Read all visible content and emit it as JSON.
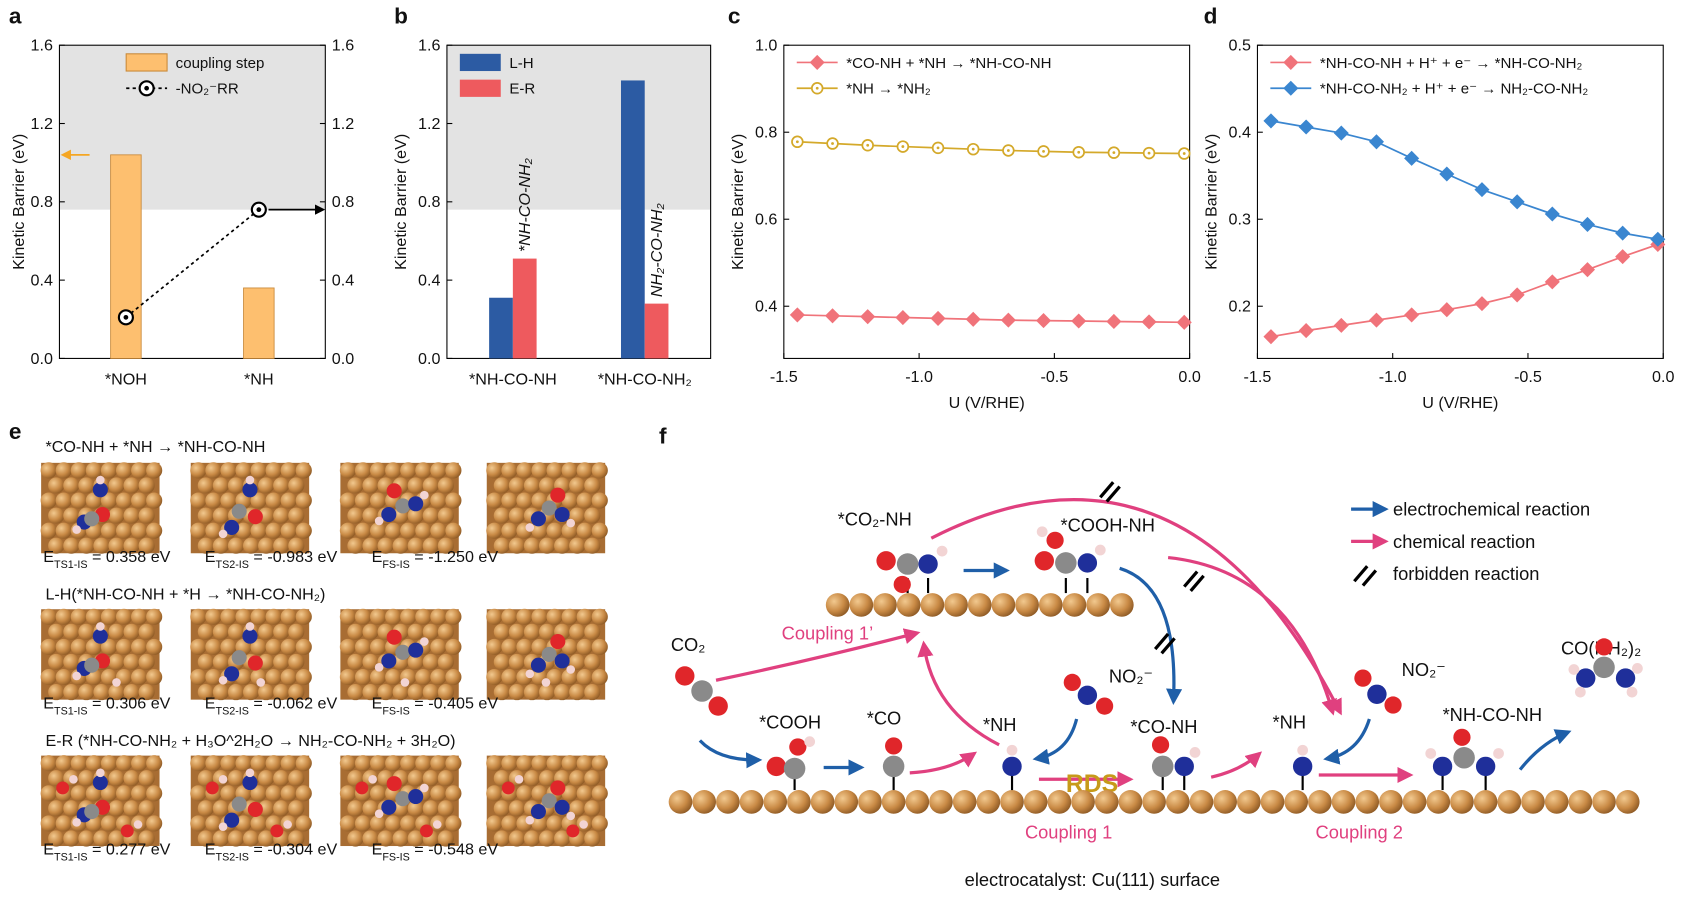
{
  "panel_labels": [
    "a",
    "b",
    "c",
    "d",
    "e",
    "f"
  ],
  "chart_data": [
    {
      "type": "bar",
      "categories": [
        "*NOH",
        "*NH"
      ],
      "series": [
        {
          "name": "coupling step",
          "color": "#fdbf6f",
          "values": [
            1.04,
            0.36
          ]
        },
        {
          "name": "-NO₂⁻RR",
          "color": "#000000",
          "type": "line",
          "marker": "bullseye",
          "axis": "y2",
          "values": [
            0.21,
            0.76
          ]
        }
      ],
      "ylabel": "Kinetic Barrier (eV)",
      "ylim": [
        0,
        1.6
      ],
      "yticks": [
        {
          "value": 0,
          "label": "0.0"
        },
        0.4,
        0.8,
        1.2,
        1.6
      ],
      "y2lim": [
        0,
        1.6
      ],
      "y2ticks": [
        {
          "value": 0,
          "label": "0.0"
        },
        0.4,
        0.8,
        1.2,
        1.6
      ],
      "shaded_above": 0.76,
      "legend": "upper right"
    },
    {
      "type": "bar",
      "categories": [
        "*NH-CO-NH",
        "*NH-CO-NH₂"
      ],
      "series": [
        {
          "name": "L-H",
          "color": "#2c5ba3",
          "values": [
            0.31,
            1.42
          ]
        },
        {
          "name": "E-R",
          "color": "#ee5a5e",
          "values": [
            0.51,
            0.28
          ]
        }
      ],
      "annotations": [
        "*NH-CO-NH₂",
        "NH₂-CO-NH₂"
      ],
      "ylabel": "Kinetic Barrier (eV)",
      "ylim": [
        0,
        1.6
      ],
      "yticks": [
        {
          "value": 0,
          "label": "0.0"
        },
        0.4,
        0.8,
        1.2,
        1.6
      ],
      "shaded_above": 0.76,
      "legend": "upper left"
    },
    {
      "type": "line",
      "x": [
        -1.45,
        -1.32,
        -1.19,
        -1.06,
        -0.93,
        -0.8,
        -0.67,
        -0.54,
        -0.41,
        -0.28,
        -0.15,
        -0.02
      ],
      "series": [
        {
          "name": "*CO-NH + *NH → *NH-CO-NH",
          "color": "#f0737a",
          "marker": "diamond",
          "values": [
            0.38,
            0.378,
            0.376,
            0.374,
            0.372,
            0.37,
            0.368,
            0.367,
            0.366,
            0.365,
            0.364,
            0.363
          ]
        },
        {
          "name": "*NH → *NH₂",
          "color": "#d4a92a",
          "marker": "circle-open",
          "values": [
            0.778,
            0.774,
            0.77,
            0.767,
            0.764,
            0.761,
            0.758,
            0.756,
            0.754,
            0.753,
            0.752,
            0.751
          ]
        }
      ],
      "xlabel": "U (V/RHE)",
      "ylabel": "Kinetic Barrier (eV)",
      "xlim": [
        -1.5,
        0
      ],
      "xticks": [
        -1.5,
        {
          "value": -1,
          "label": "-1.0"
        },
        -0.5,
        {
          "value": 0,
          "label": "0.0"
        }
      ],
      "ylim": [
        0.28,
        1.0
      ],
      "yticks": [
        0.4,
        0.6,
        0.8,
        {
          "value": 1,
          "label": "1.0"
        }
      ],
      "legend": "upper left"
    },
    {
      "type": "line",
      "x": [
        -1.45,
        -1.32,
        -1.19,
        -1.06,
        -0.93,
        -0.8,
        -0.67,
        -0.54,
        -0.41,
        -0.28,
        -0.15,
        -0.02
      ],
      "series": [
        {
          "name": "*NH-CO-NH + H⁺ + e⁻ → *NH-CO-NH₂",
          "color": "#f0737a",
          "marker": "diamond",
          "values": [
            0.165,
            0.172,
            0.178,
            0.184,
            0.19,
            0.196,
            0.203,
            0.213,
            0.228,
            0.242,
            0.257,
            0.271
          ]
        },
        {
          "name": "*NH-CO-NH₂ + H⁺ + e⁻ → NH₂-CO-NH₂",
          "color": "#3a86d0",
          "marker": "diamond",
          "values": [
            0.413,
            0.406,
            0.399,
            0.389,
            0.37,
            0.352,
            0.334,
            0.32,
            0.306,
            0.294,
            0.284,
            0.277
          ]
        }
      ],
      "xlabel": "U (V/RHE)",
      "ylabel": "Kinetic Barrier (eV)",
      "xlim": [
        -1.5,
        0
      ],
      "xticks": [
        -1.5,
        {
          "value": -1,
          "label": "-1.0"
        },
        -0.5,
        {
          "value": 0,
          "label": "0.0"
        }
      ],
      "ylim": [
        0.14,
        0.5
      ],
      "yticks": [
        0.2,
        0.3,
        0.4,
        0.5
      ],
      "legend": "upper left"
    }
  ],
  "panel_e": {
    "rows": [
      {
        "title": "*CO-NH + *NH → *NH-CO-NH",
        "energies": [
          {
            "symbol": "E",
            "sub": "TS1-IS",
            "text": " = 0.358 eV"
          },
          {
            "symbol": "E",
            "sub": "TS2-IS",
            "text": " = -0.983 eV"
          },
          {
            "symbol": "E",
            "sub": "FS-IS",
            "text": " = -1.250 eV"
          }
        ]
      },
      {
        "title": "L-H(*NH-CO-NH + *H → *NH-CO-NH₂)",
        "energies": [
          {
            "symbol": "E",
            "sub": "TS1-IS",
            "text": " = 0.306 eV"
          },
          {
            "symbol": "E",
            "sub": "TS2-IS",
            "text": " = -0.062 eV"
          },
          {
            "symbol": "E",
            "sub": "FS-IS",
            "text": " = -0.405 eV"
          }
        ]
      },
      {
        "title": "E-R (*NH-CO-NH₂ + H₃O^2H₂O → NH₂-CO-NH₂ + 3H₂O)",
        "energies": [
          {
            "symbol": "E",
            "sub": "TS1-IS",
            "text": " = 0.277 eV"
          },
          {
            "symbol": "E",
            "sub": "TS2-IS",
            "text": " = -0.304 eV"
          },
          {
            "symbol": "E",
            "sub": "FS-IS",
            "text": " = -0.548 eV"
          }
        ]
      }
    ]
  },
  "panel_f": {
    "legend": [
      "electrochemical reaction",
      "chemical reaction",
      "forbidden reaction"
    ],
    "species": [
      "*CO₂-NH",
      "*COOH-NH",
      "CO₂",
      "*COOH",
      "*CO",
      "*NH",
      "NO₂⁻",
      "*CO-NH",
      "*NH",
      "NO₂⁻",
      "*NH-CO-NH",
      "CO(NH₂)₂"
    ],
    "steps": [
      "Coupling 1’",
      "RDS",
      "Coupling 1",
      "Coupling 2"
    ],
    "caption": "electrocatalyst: Cu(111) surface"
  }
}
